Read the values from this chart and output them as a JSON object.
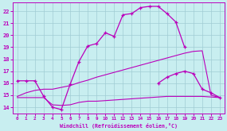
{
  "xlabel": "Windchill (Refroidissement éolien,°C)",
  "bg_color": "#c8eef0",
  "grid_color": "#a0ccd4",
  "line_color": "#bb00bb",
  "xlim": [
    -0.5,
    23.5
  ],
  "ylim": [
    13.5,
    22.7
  ],
  "xticks": [
    0,
    1,
    2,
    3,
    4,
    5,
    6,
    7,
    8,
    9,
    10,
    11,
    12,
    13,
    14,
    15,
    16,
    17,
    18,
    19,
    20,
    21,
    22,
    23
  ],
  "yticks": [
    14,
    15,
    16,
    17,
    18,
    19,
    20,
    21,
    22
  ],
  "line1_x": [
    0,
    1,
    2,
    3,
    4,
    5,
    6,
    7,
    8,
    9,
    10,
    11,
    12,
    13,
    14,
    15,
    16,
    17,
    18,
    19
  ],
  "line1_y": [
    16.2,
    16.2,
    16.2,
    14.9,
    14.0,
    13.8,
    15.9,
    17.8,
    19.1,
    19.3,
    20.2,
    19.9,
    21.7,
    21.8,
    22.3,
    22.4,
    22.4,
    21.8,
    21.1,
    19.0
  ],
  "line2_x": [
    16,
    17,
    18,
    19,
    20,
    21,
    22,
    23
  ],
  "line2_y": [
    16.0,
    16.5,
    16.8,
    17.0,
    16.8,
    15.5,
    15.2,
    14.8
  ],
  "line3_x": [
    0,
    1,
    2,
    3,
    4,
    5,
    6,
    7,
    8,
    9,
    10,
    11,
    12,
    13,
    14,
    15,
    16,
    17,
    18,
    19,
    20,
    21,
    22,
    23
  ],
  "line3_y": [
    14.8,
    14.8,
    14.8,
    14.8,
    14.2,
    14.15,
    14.2,
    14.4,
    14.5,
    14.5,
    14.55,
    14.6,
    14.65,
    14.7,
    14.75,
    14.8,
    14.85,
    14.9,
    14.9,
    14.9,
    14.9,
    14.9,
    14.85,
    14.8
  ],
  "line4_x": [
    0,
    1,
    2,
    3,
    4,
    5,
    6,
    7,
    8,
    9,
    10,
    11,
    12,
    13,
    14,
    15,
    16,
    17,
    18,
    19,
    20,
    21,
    22,
    23
  ],
  "line4_y": [
    14.9,
    15.2,
    15.4,
    15.5,
    15.5,
    15.65,
    15.8,
    16.05,
    16.25,
    16.5,
    16.7,
    16.9,
    17.1,
    17.3,
    17.5,
    17.7,
    17.9,
    18.1,
    18.3,
    18.5,
    18.65,
    18.7,
    15.0,
    14.8
  ]
}
